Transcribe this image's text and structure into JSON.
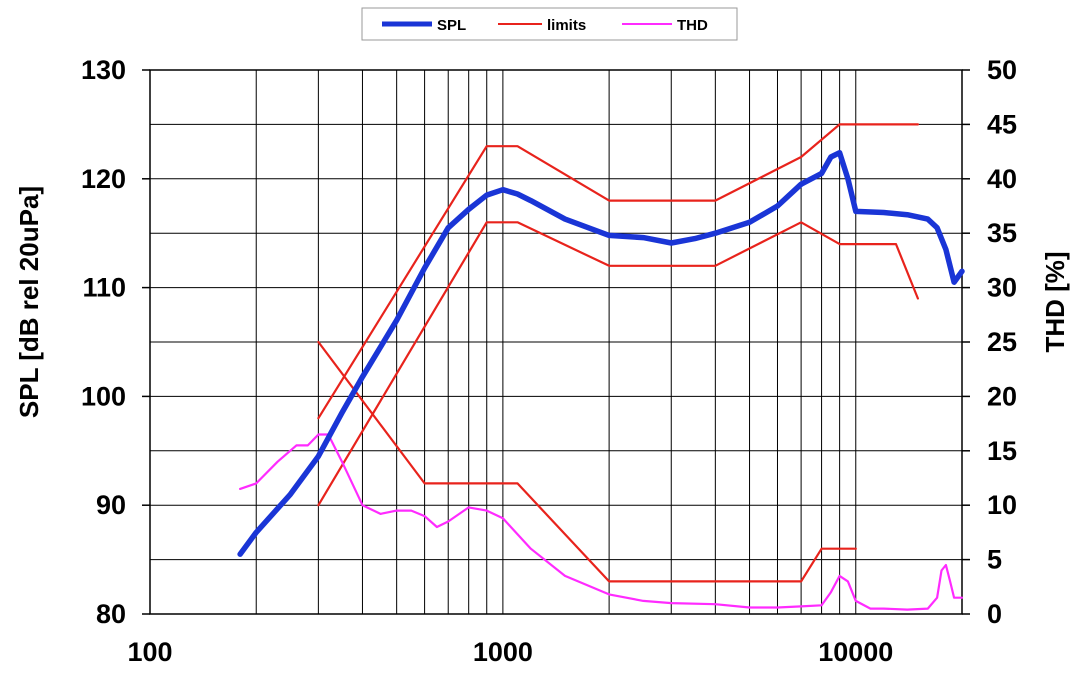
{
  "chart_data": {
    "type": "line",
    "x_scale": "log",
    "xlim": [
      100,
      20000
    ],
    "x_ticks": [
      "100",
      "1000",
      "10000"
    ],
    "y_left": {
      "label": "SPL [dB rel 20uPa]",
      "lim": [
        80,
        130
      ],
      "ticks": [
        "80",
        "90",
        "100",
        "110",
        "120",
        "130"
      ]
    },
    "y_right": {
      "label": "THD [%]",
      "lim": [
        0,
        50
      ],
      "ticks": [
        "0",
        "5",
        "10",
        "15",
        "20",
        "25",
        "30",
        "35",
        "40",
        "45",
        "50"
      ]
    },
    "grid": true,
    "legend_position": "top-center",
    "legend": [
      {
        "name": "SPL",
        "color": "#1a35d6"
      },
      {
        "name": "limits",
        "color": "#e8231c"
      },
      {
        "name": "THD",
        "color": "#ff2bff"
      }
    ],
    "series": [
      {
        "name": "SPL",
        "axis": "left",
        "color": "#1a35d6",
        "x": [
          180,
          200,
          250,
          300,
          350,
          400,
          500,
          600,
          700,
          800,
          900,
          1000,
          1100,
          1200,
          1500,
          2000,
          2500,
          3000,
          3500,
          4000,
          5000,
          6000,
          7000,
          8000,
          8500,
          9000,
          9500,
          10000,
          12000,
          14000,
          16000,
          17000,
          18000,
          19000,
          20000
        ],
        "y": [
          85.5,
          87.5,
          91,
          94.5,
          98.5,
          101.8,
          107,
          111.8,
          115.5,
          117.2,
          118.5,
          119,
          118.6,
          118,
          116.3,
          114.8,
          114.6,
          114.1,
          114.5,
          115,
          116,
          117.5,
          119.5,
          120.5,
          122,
          122.4,
          120,
          117,
          116.9,
          116.7,
          116.3,
          115.5,
          113.5,
          110.5,
          111.5
        ]
      },
      {
        "name": "limits upper",
        "axis": "left",
        "color": "#e8231c",
        "x": [
          300,
          900,
          1100,
          2000,
          4000,
          7000,
          9000,
          15000
        ],
        "y": [
          98,
          123,
          123,
          118,
          118,
          122,
          125,
          125
        ]
      },
      {
        "name": "limits lower",
        "axis": "left",
        "color": "#e8231c",
        "x": [
          300,
          900,
          1100,
          2000,
          4000,
          7000,
          9000,
          13000,
          15000
        ],
        "y": [
          90,
          116,
          116,
          112,
          112,
          116,
          114,
          114,
          109
        ]
      },
      {
        "name": "THD limit",
        "axis": "right",
        "color": "#e8231c",
        "x": [
          300,
          600,
          1100,
          2000,
          4000,
          7000,
          8000,
          10000
        ],
        "y": [
          25,
          12,
          12,
          3,
          3,
          3,
          6,
          6
        ]
      },
      {
        "name": "THD",
        "axis": "right",
        "color": "#ff2bff",
        "x": [
          180,
          200,
          230,
          260,
          280,
          300,
          320,
          350,
          400,
          450,
          500,
          550,
          600,
          650,
          700,
          800,
          900,
          1000,
          1200,
          1500,
          2000,
          2500,
          3000,
          4000,
          5000,
          6000,
          7000,
          8000,
          8500,
          9000,
          9500,
          10000,
          11000,
          12000,
          14000,
          16000,
          17000,
          17500,
          18000,
          18500,
          19000,
          20000
        ],
        "y": [
          11.5,
          12,
          14,
          15.5,
          15.5,
          16.5,
          16.5,
          14,
          10,
          9.2,
          9.5,
          9.5,
          9,
          8,
          8.5,
          9.8,
          9.5,
          8.8,
          6,
          3.5,
          1.8,
          1.2,
          1.0,
          0.9,
          0.6,
          0.6,
          0.7,
          0.8,
          2,
          3.5,
          3,
          1.2,
          0.5,
          0.5,
          0.4,
          0.5,
          1.5,
          4,
          4.5,
          3,
          1.5,
          1.5
        ]
      }
    ]
  }
}
